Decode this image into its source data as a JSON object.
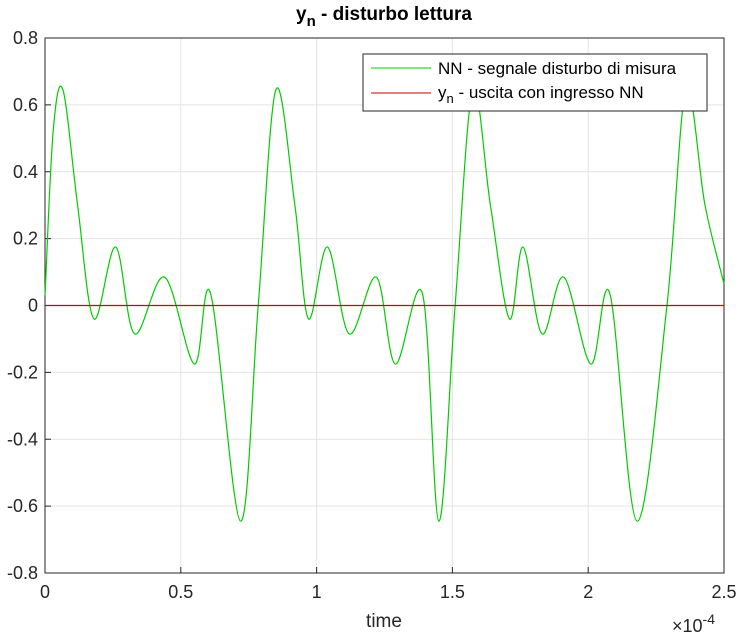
{
  "chart_data": {
    "type": "line",
    "title": {
      "main": "y",
      "sub": "n",
      "rest": " - disturbo lettura"
    },
    "xlabel": "time",
    "ylabel": "",
    "x_exponent": {
      "base": "×10",
      "power": "-4"
    },
    "xlim": [
      0,
      2.5
    ],
    "ylim": [
      -0.8,
      0.8
    ],
    "x_ticks": [
      0,
      0.5,
      1,
      1.5,
      2,
      2.5
    ],
    "x_tick_labels": [
      "0",
      "0.5",
      "1",
      "1.5",
      "2",
      "2.5"
    ],
    "y_ticks": [
      -0.8,
      -0.6,
      -0.4,
      -0.2,
      0,
      0.2,
      0.4,
      0.6,
      0.8
    ],
    "y_tick_labels": [
      "-0.8",
      "-0.6",
      "-0.4",
      "-0.2",
      "0",
      "0.2",
      "0.4",
      "0.6",
      "0.8"
    ],
    "grid": true,
    "legend_position": "top-right",
    "series": [
      {
        "name": "NN - segnale disturbo di misura",
        "color": "#00cc00",
        "x": [
          0,
          0.03,
          0.066,
          0.12,
          0.18,
          0.26,
          0.33,
          0.44,
          0.55,
          0.61,
          0.72,
          0.785,
          0.85,
          0.92,
          0.97,
          1.04,
          1.12,
          1.22,
          1.29,
          1.39,
          1.45,
          1.51,
          1.575,
          1.64,
          1.71,
          1.76,
          1.83,
          1.91,
          2.01,
          2.08,
          2.18,
          2.29,
          2.36,
          2.43,
          2.5
        ],
        "y": [
          0.03,
          0.52,
          0.645,
          0.3,
          -0.04,
          0.175,
          -0.085,
          0.085,
          -0.175,
          0.035,
          -0.645,
          0,
          0.645,
          0.3,
          -0.04,
          0.175,
          -0.085,
          0.085,
          -0.175,
          0.035,
          -0.645,
          0,
          0.645,
          0.3,
          -0.04,
          0.175,
          -0.085,
          0.085,
          -0.175,
          0.035,
          -0.645,
          0,
          0.645,
          0.3,
          0.065
        ]
      },
      {
        "name": {
          "main": "y",
          "sub": "n",
          "rest": " - uscita con ingresso NN"
        },
        "color": "#cc0000",
        "x": [
          0,
          0.25,
          0.5,
          0.75,
          1,
          1.25,
          1.5,
          1.75,
          2,
          2.25,
          2.5
        ],
        "y": [
          0,
          0,
          0,
          0,
          0,
          0,
          0,
          0,
          0,
          0,
          0
        ]
      }
    ]
  }
}
